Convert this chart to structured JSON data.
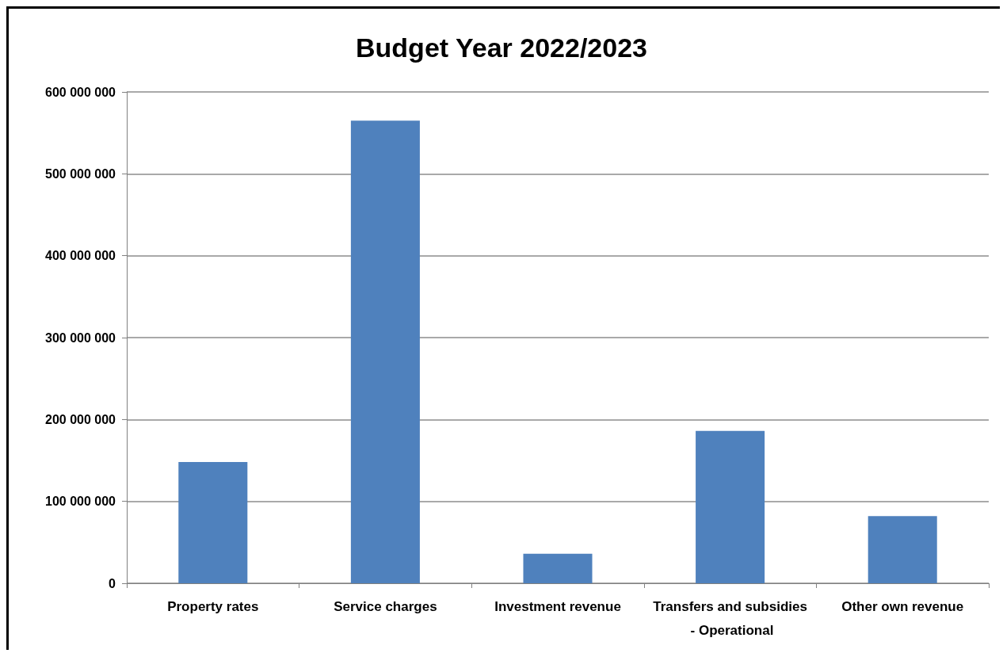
{
  "chart_data": {
    "type": "bar",
    "title": "Budget Year 2022/2023",
    "categories": [
      "Property rates",
      "Service charges",
      "Investment revenue",
      "Transfers and subsidies - Operational",
      "Other own revenue"
    ],
    "values": [
      148000000,
      565000000,
      36000000,
      186000000,
      82000000
    ],
    "color": "#4f81bd",
    "ylim": [
      0,
      600000000
    ],
    "yticks": [
      {
        "value": 0,
        "label": "0"
      },
      {
        "value": 100000000,
        "label": "100 000 000"
      },
      {
        "value": 200000000,
        "label": "200 000 000"
      },
      {
        "value": 300000000,
        "label": "300 000 000"
      },
      {
        "value": 400000000,
        "label": "400 000 000"
      },
      {
        "value": 500000000,
        "label": "500 000 000"
      },
      {
        "value": 600000000,
        "label": "600 000 000"
      }
    ],
    "grid": "y"
  }
}
